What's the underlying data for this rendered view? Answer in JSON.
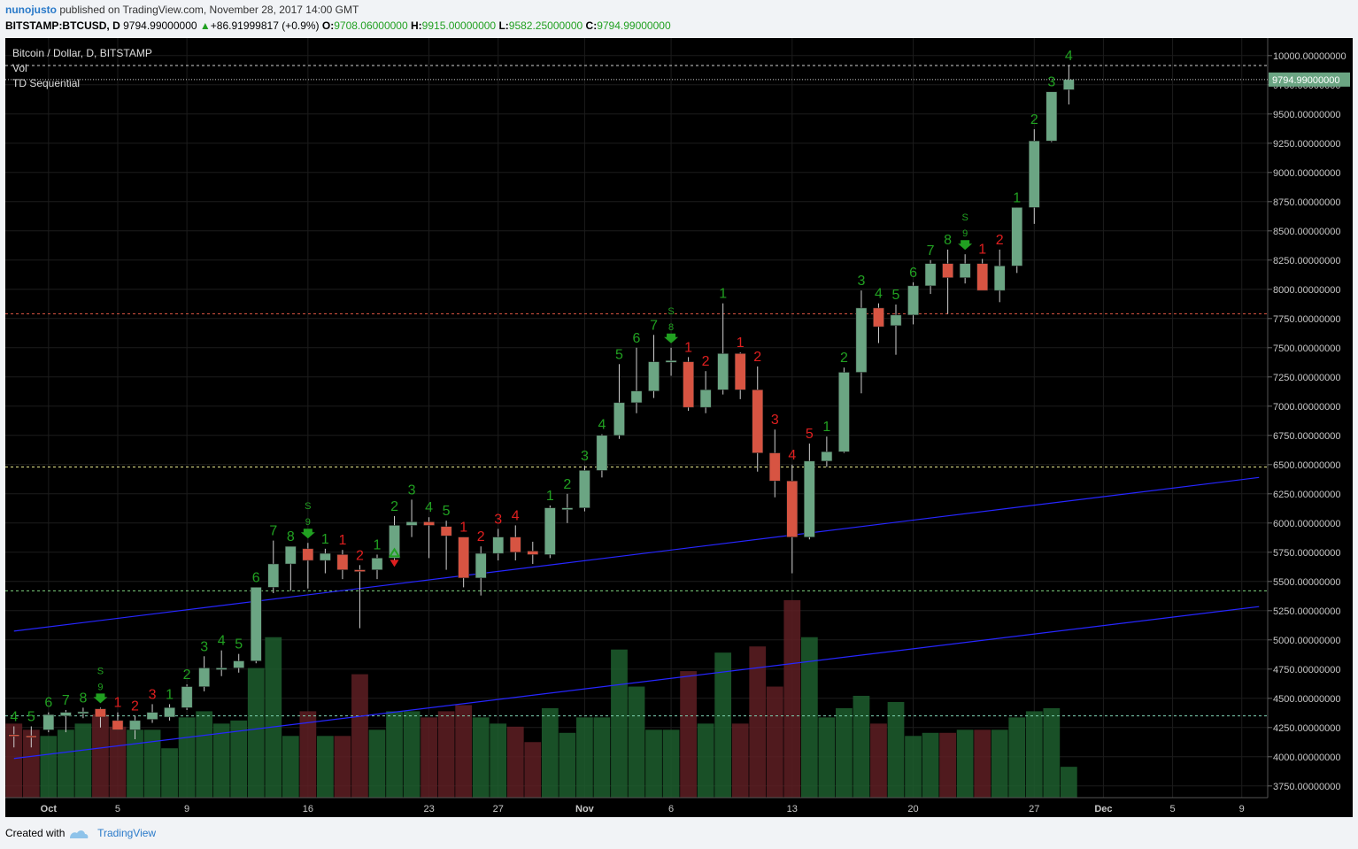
{
  "header": {
    "user": "nunojusto",
    "published_text": "published on TradingView.com, November 28, 2017 14:00 GMT",
    "symbol": "BITSTAMP:BTCUSD, D",
    "last": "9794.99000000",
    "change": "+86.91999817 (+0.9%)",
    "o_label": "O:",
    "o": "9708.06000000",
    "h_label": "H:",
    "h": "9915.00000000",
    "l_label": "L:",
    "l": "9582.25000000",
    "c_label": "C:",
    "c": "9794.99000000"
  },
  "legend": {
    "title": "Bitcoin / Dollar, D, BITSTAMP",
    "vol": "Vol",
    "indicator": "TD Sequential"
  },
  "footer": {
    "created_with": "Created with",
    "brand": "TradingView"
  },
  "colors": {
    "background": "#000000",
    "up": "#6ba583",
    "down": "#d75442",
    "vol_up": "#1d5e2e",
    "vol_down": "#5e1f23",
    "td_buy": "#21a021",
    "td_sell": "#e01f1f",
    "trendline": "#2626ff",
    "current_price_label": "#6ba583"
  },
  "chart_data": {
    "type": "candlestick",
    "title": "Bitcoin / Dollar, D, BITSTAMP",
    "ylim": [
      3650,
      10150
    ],
    "yticks": [
      3750,
      4000,
      4250,
      4500,
      4750,
      5000,
      5250,
      5500,
      5750,
      6000,
      6250,
      6500,
      6750,
      7000,
      7250,
      7500,
      7750,
      8000,
      8250,
      8500,
      8750,
      9000,
      9250,
      9500,
      9750,
      10000
    ],
    "ytick_labels": [
      "3750.00000000",
      "4000.00000000",
      "4250.00000000",
      "4500.00000000",
      "4750.00000000",
      "5000.00000000",
      "5250.00000000",
      "5500.00000000",
      "5750.00000000",
      "6000.00000000",
      "6250.00000000",
      "6500.00000000",
      "6750.00000000",
      "7000.00000000",
      "7250.00000000",
      "7500.00000000",
      "7750.00000000",
      "8000.00000000",
      "8250.00000000",
      "8500.00000000",
      "8750.00000000",
      "9000.00000000",
      "9250.00000000",
      "9500.00000000",
      "9750.00000000",
      "10000.00000000"
    ],
    "x_start": "2017-09-29",
    "x_end": "2017-12-10",
    "xticks": [
      {
        "date": "2017-10-01",
        "label": "Oct",
        "bold": true
      },
      {
        "date": "2017-10-05",
        "label": "5"
      },
      {
        "date": "2017-10-09",
        "label": "9"
      },
      {
        "date": "2017-10-16",
        "label": "16"
      },
      {
        "date": "2017-10-23",
        "label": "23"
      },
      {
        "date": "2017-10-27",
        "label": "27"
      },
      {
        "date": "2017-11-01",
        "label": "Nov",
        "bold": true
      },
      {
        "date": "2017-11-06",
        "label": "6"
      },
      {
        "date": "2017-11-13",
        "label": "13"
      },
      {
        "date": "2017-11-20",
        "label": "20"
      },
      {
        "date": "2017-11-27",
        "label": "27"
      },
      {
        "date": "2017-12-01",
        "label": "Dec",
        "bold": true
      },
      {
        "date": "2017-12-05",
        "label": "5"
      },
      {
        "date": "2017-12-09",
        "label": "9"
      }
    ],
    "horizontal_lines": [
      {
        "y": 9915,
        "color": "#cfcfcf"
      },
      {
        "y": 7790,
        "color": "#d75442"
      },
      {
        "y": 6480,
        "color": "#e6e68a"
      },
      {
        "y": 5420,
        "color": "#7fd47f"
      },
      {
        "y": 4350,
        "color": "#7fd4b4"
      }
    ],
    "trendlines": [
      {
        "from": [
          "2017-09-29",
          5075
        ],
        "to": [
          "2017-12-10",
          6390
        ]
      },
      {
        "from": [
          "2017-09-29",
          3985
        ],
        "to": [
          "2017-12-10",
          5285
        ]
      }
    ],
    "current_price": 9794.99,
    "current_price_label": "9794.99000000",
    "candles": [
      {
        "d": "2017-09-29",
        "o": 4190,
        "h": 4260,
        "l": 4080,
        "c": 4185,
        "v": 1200,
        "td": "4",
        "tdc": "buy"
      },
      {
        "d": "2017-09-30",
        "o": 4180,
        "h": 4260,
        "l": 4080,
        "c": 4178,
        "v": 1100,
        "td": "5",
        "tdc": "buy"
      },
      {
        "d": "2017-10-01",
        "o": 4230,
        "h": 4380,
        "l": 4210,
        "c": 4360,
        "v": 1000,
        "td": "6",
        "tdc": "buy"
      },
      {
        "d": "2017-10-02",
        "o": 4350,
        "h": 4400,
        "l": 4210,
        "c": 4380,
        "v": 1100,
        "td": "7",
        "tdc": "buy"
      },
      {
        "d": "2017-10-03",
        "o": 4380,
        "h": 4420,
        "l": 4330,
        "c": 4385,
        "v": 1200,
        "td": "8",
        "tdc": "buy"
      },
      {
        "d": "2017-10-04",
        "o": 4410,
        "h": 4420,
        "l": 4250,
        "c": 4340,
        "v": 1350,
        "td": "9",
        "tdc": "buy",
        "setup": true
      },
      {
        "d": "2017-10-05",
        "o": 4310,
        "h": 4380,
        "l": 4230,
        "c": 4230,
        "v": 1150,
        "td": "1",
        "tdc": "sell"
      },
      {
        "d": "2017-10-06",
        "o": 4230,
        "h": 4350,
        "l": 4150,
        "c": 4310,
        "v": 1100,
        "td": "2",
        "tdc": "sell"
      },
      {
        "d": "2017-10-07",
        "o": 4320,
        "h": 4450,
        "l": 4290,
        "c": 4380,
        "v": 1100,
        "td": "3",
        "tdc": "sell"
      },
      {
        "d": "2017-10-08",
        "o": 4340,
        "h": 4450,
        "l": 4310,
        "c": 4420,
        "v": 800,
        "td": "1",
        "tdc": "buy"
      },
      {
        "d": "2017-10-09",
        "o": 4420,
        "h": 4620,
        "l": 4400,
        "c": 4600,
        "v": 1300,
        "td": "2",
        "tdc": "buy"
      },
      {
        "d": "2017-10-10",
        "o": 4600,
        "h": 4860,
        "l": 4560,
        "c": 4760,
        "v": 1400,
        "td": "3",
        "tdc": "buy"
      },
      {
        "d": "2017-10-11",
        "o": 4760,
        "h": 4910,
        "l": 4690,
        "c": 4760,
        "v": 1200,
        "td": "4",
        "tdc": "buy"
      },
      {
        "d": "2017-10-12",
        "o": 4760,
        "h": 4880,
        "l": 4720,
        "c": 4820,
        "v": 1250,
        "td": "5",
        "tdc": "buy"
      },
      {
        "d": "2017-10-13",
        "o": 4820,
        "h": 5450,
        "l": 4800,
        "c": 5450,
        "v": 2100,
        "td": "6",
        "tdc": "buy"
      },
      {
        "d": "2017-10-14",
        "o": 5450,
        "h": 5850,
        "l": 5400,
        "c": 5650,
        "v": 2600,
        "td": "7",
        "tdc": "buy"
      },
      {
        "d": "2017-10-15",
        "o": 5650,
        "h": 5800,
        "l": 5420,
        "c": 5800,
        "v": 1000,
        "td": "8",
        "tdc": "buy"
      },
      {
        "d": "2017-10-16",
        "o": 5780,
        "h": 5830,
        "l": 5440,
        "c": 5680,
        "v": 1400,
        "td": "9",
        "tdc": "buy",
        "setup": true
      },
      {
        "d": "2017-10-17",
        "o": 5680,
        "h": 5780,
        "l": 5570,
        "c": 5740,
        "v": 1000,
        "td": "1",
        "tdc": "buy"
      },
      {
        "d": "2017-10-18",
        "o": 5730,
        "h": 5770,
        "l": 5520,
        "c": 5600,
        "v": 1000,
        "td": "1",
        "tdc": "sell"
      },
      {
        "d": "2017-10-19",
        "o": 5600,
        "h": 5640,
        "l": 5100,
        "c": 5590,
        "v": 2000,
        "td": "2",
        "tdc": "sell"
      },
      {
        "d": "2017-10-20",
        "o": 5600,
        "h": 5730,
        "l": 5520,
        "c": 5700,
        "v": 1100,
        "td": "1",
        "tdc": "buy"
      },
      {
        "d": "2017-10-21",
        "o": 5700,
        "h": 6060,
        "l": 5640,
        "c": 5980,
        "v": 1400,
        "td": "2",
        "tdc": "buy",
        "arrows": true
      },
      {
        "d": "2017-10-22",
        "o": 5980,
        "h": 6200,
        "l": 5880,
        "c": 6010,
        "v": 1400,
        "td": "3",
        "tdc": "buy"
      },
      {
        "d": "2017-10-23",
        "o": 6010,
        "h": 6050,
        "l": 5700,
        "c": 5980,
        "v": 1300,
        "td": "4",
        "tdc": "buy"
      },
      {
        "d": "2017-10-24",
        "o": 5970,
        "h": 6020,
        "l": 5600,
        "c": 5890,
        "v": 1400,
        "td": "5",
        "tdc": "buy"
      },
      {
        "d": "2017-10-25",
        "o": 5880,
        "h": 5880,
        "l": 5450,
        "c": 5530,
        "v": 1500,
        "td": "1",
        "tdc": "sell"
      },
      {
        "d": "2017-10-26",
        "o": 5530,
        "h": 5800,
        "l": 5380,
        "c": 5740,
        "v": 1300,
        "td": "2",
        "tdc": "sell"
      },
      {
        "d": "2017-10-27",
        "o": 5740,
        "h": 5950,
        "l": 5680,
        "c": 5880,
        "v": 1200,
        "td": "3",
        "tdc": "sell"
      },
      {
        "d": "2017-10-28",
        "o": 5880,
        "h": 5980,
        "l": 5680,
        "c": 5750,
        "v": 1150,
        "td": "4",
        "tdc": "sell"
      },
      {
        "d": "2017-10-29",
        "o": 5760,
        "h": 5840,
        "l": 5650,
        "c": 5730,
        "v": 900,
        "td": "",
        "tdc": "sell"
      },
      {
        "d": "2017-10-30",
        "o": 5730,
        "h": 6150,
        "l": 5700,
        "c": 6130,
        "v": 1450,
        "td": "1",
        "tdc": "buy"
      },
      {
        "d": "2017-10-31",
        "o": 6130,
        "h": 6250,
        "l": 6000,
        "c": 6130,
        "v": 1050,
        "td": "2",
        "tdc": "buy"
      },
      {
        "d": "2017-11-01",
        "o": 6130,
        "h": 6490,
        "l": 6100,
        "c": 6450,
        "v": 1300,
        "td": "3",
        "tdc": "buy"
      },
      {
        "d": "2017-11-02",
        "o": 6450,
        "h": 6760,
        "l": 6390,
        "c": 6750,
        "v": 1300,
        "td": "4",
        "tdc": "buy"
      },
      {
        "d": "2017-11-03",
        "o": 6750,
        "h": 7360,
        "l": 6720,
        "c": 7030,
        "v": 2400,
        "td": "5",
        "tdc": "buy"
      },
      {
        "d": "2017-11-04",
        "o": 7030,
        "h": 7500,
        "l": 6940,
        "c": 7130,
        "v": 1800,
        "td": "6",
        "tdc": "buy"
      },
      {
        "d": "2017-11-05",
        "o": 7130,
        "h": 7610,
        "l": 7070,
        "c": 7380,
        "v": 1100,
        "td": "7",
        "tdc": "buy"
      },
      {
        "d": "2017-11-06",
        "o": 7390,
        "h": 7500,
        "l": 7260,
        "c": 7390,
        "v": 1100,
        "td": "8",
        "tdc": "buy",
        "setup": true
      },
      {
        "d": "2017-11-07",
        "o": 7380,
        "h": 7420,
        "l": 6960,
        "c": 6990,
        "v": 2050,
        "td": "1",
        "tdc": "sell"
      },
      {
        "d": "2017-11-08",
        "o": 6990,
        "h": 7300,
        "l": 6940,
        "c": 7140,
        "v": 1200,
        "td": "2",
        "tdc": "sell"
      },
      {
        "d": "2017-11-09",
        "o": 7140,
        "h": 7880,
        "l": 7100,
        "c": 7450,
        "v": 2350,
        "td": "1",
        "tdc": "buy"
      },
      {
        "d": "2017-11-10",
        "o": 7450,
        "h": 7460,
        "l": 7060,
        "c": 7140,
        "v": 1200,
        "td": "1",
        "tdc": "sell"
      },
      {
        "d": "2017-11-11",
        "o": 7140,
        "h": 7340,
        "l": 6440,
        "c": 6600,
        "v": 2450,
        "td": "2",
        "tdc": "sell"
      },
      {
        "d": "2017-11-12",
        "o": 6600,
        "h": 6800,
        "l": 6220,
        "c": 6360,
        "v": 1800,
        "td": "3",
        "tdc": "sell"
      },
      {
        "d": "2017-11-13",
        "o": 6360,
        "h": 6500,
        "l": 5570,
        "c": 5880,
        "v": 3200,
        "td": "4",
        "tdc": "sell"
      },
      {
        "d": "2017-11-14",
        "o": 5880,
        "h": 6680,
        "l": 5860,
        "c": 6530,
        "v": 2600,
        "td": "5",
        "tdc": "sell"
      },
      {
        "d": "2017-11-15",
        "o": 6530,
        "h": 6740,
        "l": 6480,
        "c": 6610,
        "v": 1300,
        "td": "1",
        "tdc": "buy"
      },
      {
        "d": "2017-11-16",
        "o": 6610,
        "h": 7330,
        "l": 6600,
        "c": 7290,
        "v": 1450,
        "td": "2",
        "tdc": "buy"
      },
      {
        "d": "2017-11-17",
        "o": 7290,
        "h": 7990,
        "l": 7110,
        "c": 7840,
        "v": 1650,
        "td": "3",
        "tdc": "buy"
      },
      {
        "d": "2017-11-18",
        "o": 7840,
        "h": 7880,
        "l": 7540,
        "c": 7680,
        "v": 1200,
        "td": "4",
        "tdc": "buy"
      },
      {
        "d": "2017-11-19",
        "o": 7690,
        "h": 7870,
        "l": 7440,
        "c": 7780,
        "v": 1550,
        "td": "5",
        "tdc": "buy"
      },
      {
        "d": "2017-11-20",
        "o": 7780,
        "h": 8060,
        "l": 7700,
        "c": 8030,
        "v": 1000,
        "td": "6",
        "tdc": "buy"
      },
      {
        "d": "2017-11-21",
        "o": 8030,
        "h": 8250,
        "l": 7960,
        "c": 8220,
        "v": 1050,
        "td": "7",
        "tdc": "buy"
      },
      {
        "d": "2017-11-22",
        "o": 8220,
        "h": 8340,
        "l": 7790,
        "c": 8100,
        "v": 1050,
        "td": "8",
        "tdc": "buy"
      },
      {
        "d": "2017-11-23",
        "o": 8100,
        "h": 8300,
        "l": 8050,
        "c": 8220,
        "v": 1100,
        "td": "9",
        "tdc": "buy",
        "setup": true
      },
      {
        "d": "2017-11-24",
        "o": 8220,
        "h": 8260,
        "l": 8000,
        "c": 7990,
        "v": 1100,
        "td": "1",
        "tdc": "sell"
      },
      {
        "d": "2017-11-25",
        "o": 7990,
        "h": 8340,
        "l": 7890,
        "c": 8200,
        "v": 1100,
        "td": "2",
        "tdc": "sell"
      },
      {
        "d": "2017-11-26",
        "o": 8200,
        "h": 8700,
        "l": 8140,
        "c": 8700,
        "v": 1300,
        "td": "1",
        "tdc": "buy"
      },
      {
        "d": "2017-11-27",
        "o": 8700,
        "h": 9370,
        "l": 8560,
        "c": 9270,
        "v": 1400,
        "td": "2",
        "tdc": "buy"
      },
      {
        "d": "2017-11-28",
        "o": 9270,
        "h": 9690,
        "l": 9260,
        "c": 9690,
        "v": 1450,
        "td": "3",
        "tdc": "buy"
      },
      {
        "d": "2017-11-29",
        "o": 9708,
        "h": 9915,
        "l": 9582,
        "c": 9795,
        "v": 500,
        "td": "4",
        "tdc": "buy"
      }
    ],
    "volume_max": 3200
  }
}
